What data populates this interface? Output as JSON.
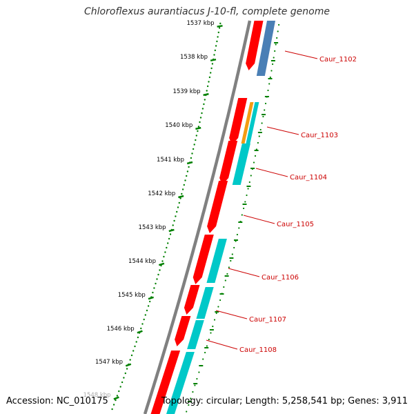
{
  "title": "Chloroflexus aurantiacus J-10-fl, complete genome",
  "accession": "Accession: NC_010175",
  "summary": "Topology: circular; Length: 5,258,541 bp; Genes: 3,911",
  "colors": {
    "backbone": "#808080",
    "cds_forward": "#ff0000",
    "rna_gene": "#4a7fb5",
    "category_cyan": "#00c8c8",
    "category_orange": "#f39c12",
    "ticks": "#008000",
    "gene_label": "#cc0000"
  },
  "kbp_ticks": [
    "1537 kbp",
    "1538 kbp",
    "1539 kbp",
    "1540 kbp",
    "1541 kbp",
    "1542 kbp",
    "1543 kbp",
    "1544 kbp",
    "1545 kbp",
    "1546 kbp",
    "1547 kbp",
    "1548 kbp"
  ],
  "gene_labels": [
    "Caur_1102",
    "Caur_1103",
    "Caur_1104",
    "Caur_1105",
    "Caur_1106",
    "Caur_1107",
    "Caur_1108"
  ]
}
